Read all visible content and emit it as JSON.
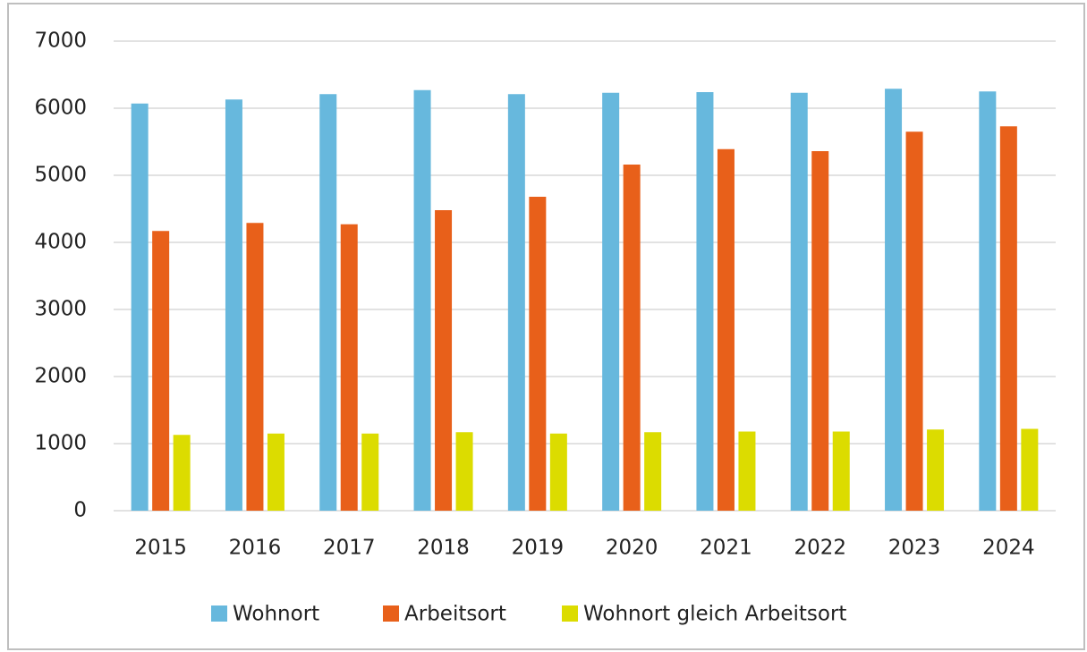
{
  "chart_data": {
    "type": "bar",
    "categories": [
      "2015",
      "2016",
      "2017",
      "2018",
      "2019",
      "2020",
      "2021",
      "2022",
      "2023",
      "2024"
    ],
    "series": [
      {
        "name": "Wohnort",
        "color": "#67b8dd",
        "values": [
          6070,
          6130,
          6210,
          6270,
          6210,
          6230,
          6240,
          6230,
          6290,
          6250
        ]
      },
      {
        "name": "Arbeitsort",
        "color": "#e8601a",
        "values": [
          4170,
          4290,
          4270,
          4480,
          4680,
          5160,
          5390,
          5360,
          5650,
          5730
        ]
      },
      {
        "name": "Wohnort gleich Arbeitsort",
        "color": "#dcdc00",
        "values": [
          1130,
          1150,
          1150,
          1170,
          1150,
          1170,
          1180,
          1180,
          1210,
          1220
        ]
      }
    ],
    "ylim": [
      0,
      7000
    ],
    "yticks": [
      0,
      1000,
      2000,
      3000,
      4000,
      5000,
      6000,
      7000
    ],
    "grid": true,
    "legend": "bottom"
  }
}
